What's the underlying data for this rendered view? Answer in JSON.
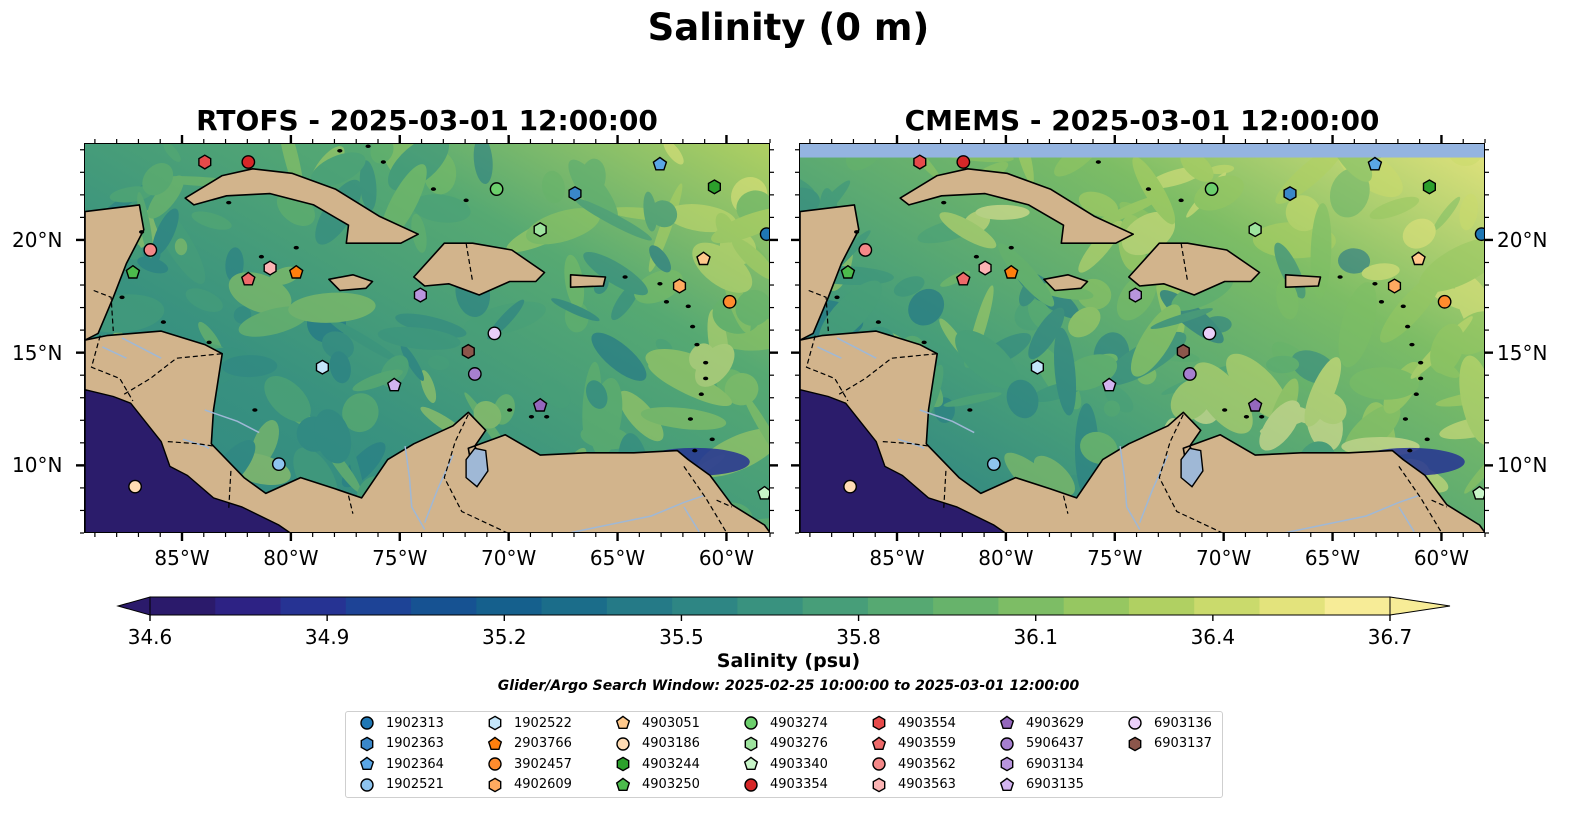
{
  "suptitle": "Salinity (0 m)",
  "panels": [
    {
      "title": "RTOFS - 2025-03-01 12:00:00",
      "model": "RTOFS"
    },
    {
      "title": "CMEMS - 2025-03-01 12:00:00",
      "model": "CMEMS"
    }
  ],
  "map": {
    "extent": {
      "lon": [
        -89.5,
        -58.0
      ],
      "lat": [
        7.0,
        24.3
      ]
    },
    "lon_ticks": [
      {
        "value": -85,
        "label": "85°W"
      },
      {
        "value": -80,
        "label": "80°W"
      },
      {
        "value": -75,
        "label": "75°W"
      },
      {
        "value": -70,
        "label": "70°W"
      },
      {
        "value": -65,
        "label": "65°W"
      },
      {
        "value": -60,
        "label": "60°W"
      }
    ],
    "lat_ticks": [
      {
        "value": 10,
        "label": "10°N"
      },
      {
        "value": 15,
        "label": "15°N"
      },
      {
        "value": 20,
        "label": "20°N"
      }
    ],
    "colors": {
      "land": "#d2b48c",
      "lake": "#9fb8d6",
      "deep_low": "#2b1c6b",
      "missing": "#94b4e0"
    }
  },
  "colorbar": {
    "ticks": [
      "34.6",
      "34.9",
      "35.2",
      "35.5",
      "35.8",
      "36.1",
      "36.4",
      "36.7"
    ],
    "range": [
      34.6,
      36.7
    ],
    "label": "Salinity (psu)",
    "colors": [
      "#2b1a6b",
      "#2d2284",
      "#263393",
      "#1d4396",
      "#165292",
      "#15608d",
      "#1b6d8a",
      "#257a87",
      "#2e8684",
      "#39927f",
      "#479e79",
      "#56a972",
      "#67b36b",
      "#7dbd65",
      "#96c761",
      "#b0d062",
      "#cada6c",
      "#e3e37c",
      "#f7ec97"
    ]
  },
  "search_window": "Glider/Argo Search Window: 2025-02-25 10:00:00 to 2025-03-01 12:00:00",
  "floats": [
    {
      "id": "1902313",
      "marker": "circle",
      "color": "#1f77b4",
      "lon": -58.2,
      "lat": 20.3
    },
    {
      "id": "1902363",
      "marker": "hexagon",
      "color": "#3a87c9",
      "lon": -67.0,
      "lat": 22.1
    },
    {
      "id": "1902364",
      "marker": "pentagon",
      "color": "#5aa6e6",
      "lon": -63.1,
      "lat": 23.4
    },
    {
      "id": "1902521",
      "marker": "circle",
      "color": "#8ec4ee",
      "lon": -80.6,
      "lat": 10.1
    },
    {
      "id": "1902522",
      "marker": "hexagon",
      "color": "#c4e6fa",
      "lon": -78.6,
      "lat": 14.4
    },
    {
      "id": "2903766",
      "marker": "pentagon",
      "color": "#ff7f0e",
      "lon": -79.8,
      "lat": 18.6
    },
    {
      "id": "3902457",
      "marker": "circle",
      "color": "#ff8c2e",
      "lon": -59.9,
      "lat": 17.3
    },
    {
      "id": "4902609",
      "marker": "hexagon",
      "color": "#ffaa60",
      "lon": -62.2,
      "lat": 18.0
    },
    {
      "id": "4903051",
      "marker": "pentagon",
      "color": "#ffc98c",
      "lon": -61.1,
      "lat": 19.2
    },
    {
      "id": "4903186",
      "marker": "circle",
      "color": "#ffdcb4",
      "lon": -87.2,
      "lat": 9.1
    },
    {
      "id": "4903244",
      "marker": "hexagon",
      "color": "#2ca02c",
      "lon": -60.6,
      "lat": 22.4
    },
    {
      "id": "4903250",
      "marker": "pentagon",
      "color": "#4cbb4c",
      "lon": -87.3,
      "lat": 18.6
    },
    {
      "id": "4903274",
      "marker": "circle",
      "color": "#6ccf6c",
      "lon": -70.6,
      "lat": 22.3
    },
    {
      "id": "4903276",
      "marker": "hexagon",
      "color": "#9ee39e",
      "lon": -68.6,
      "lat": 20.5
    },
    {
      "id": "4903340",
      "marker": "pentagon",
      "color": "#c8f5c8",
      "lon": -58.3,
      "lat": 8.8
    },
    {
      "id": "4903354",
      "marker": "circle",
      "color": "#d62728",
      "lon": -82.0,
      "lat": 23.5
    },
    {
      "id": "4903554",
      "marker": "hexagon",
      "color": "#e64a4a",
      "lon": -84.0,
      "lat": 23.5
    },
    {
      "id": "4903559",
      "marker": "pentagon",
      "color": "#ee6a6a",
      "lon": -82.0,
      "lat": 18.3
    },
    {
      "id": "4903562",
      "marker": "circle",
      "color": "#f48888",
      "lon": -86.5,
      "lat": 19.6
    },
    {
      "id": "4903563",
      "marker": "hexagon",
      "color": "#fbb4b4",
      "lon": -81.0,
      "lat": 18.8
    },
    {
      "id": "4903629",
      "marker": "pentagon",
      "color": "#9467bd",
      "lon": -68.6,
      "lat": 12.7
    },
    {
      "id": "5906437",
      "marker": "circle",
      "color": "#a67fcf",
      "lon": -71.6,
      "lat": 14.1
    },
    {
      "id": "6903134",
      "marker": "hexagon",
      "color": "#b895dd",
      "lon": -74.1,
      "lat": 17.6
    },
    {
      "id": "6903135",
      "marker": "pentagon",
      "color": "#d3b4f0",
      "lon": -75.3,
      "lat": 13.6
    },
    {
      "id": "6903136",
      "marker": "circle",
      "color": "#eacff9",
      "lon": -70.7,
      "lat": 15.9
    },
    {
      "id": "6903137",
      "marker": "hexagon",
      "color": "#8c564b",
      "lon": -71.9,
      "lat": 15.1
    }
  ]
}
